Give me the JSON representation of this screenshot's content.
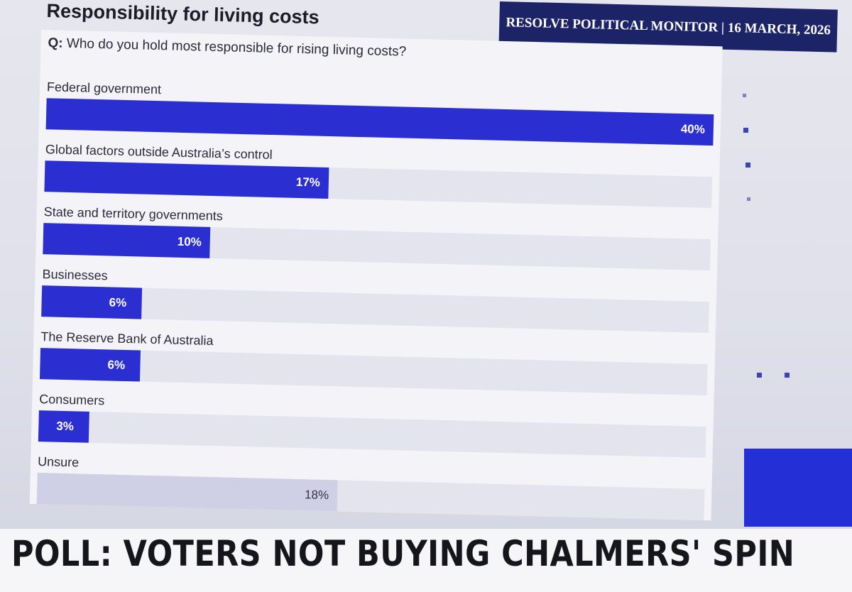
{
  "header": {
    "title": "Responsibility for living costs",
    "source_banner": "RESOLVE POLITICAL MONITOR | 16 MARCH, 2026"
  },
  "question": {
    "prefix": "Q:",
    "text": "Who do you hold most responsible for rising living costs?"
  },
  "chart_data": {
    "type": "bar",
    "orientation": "horizontal",
    "title": "Responsibility for living costs",
    "xlim": [
      0,
      40
    ],
    "categories": [
      "Federal government",
      "Global factors outside Australia’s control",
      "State and territory governments",
      "Businesses",
      "The Reserve Bank of Australia",
      "Consumers",
      "Unsure"
    ],
    "values": [
      40,
      17,
      10,
      6,
      6,
      3,
      18
    ],
    "value_labels": [
      "40%",
      "17%",
      "10%",
      "6%",
      "6%",
      "3%",
      "18%"
    ],
    "muted": [
      false,
      false,
      false,
      false,
      false,
      false,
      true
    ],
    "colors": {
      "bar": "#2b2fd1",
      "muted_bar": "#cfd0e6",
      "track": "#e4e4ee"
    }
  },
  "ticker": {
    "headline": "POLL: VOTERS NOT BUYING CHALMERS' SPIN"
  }
}
